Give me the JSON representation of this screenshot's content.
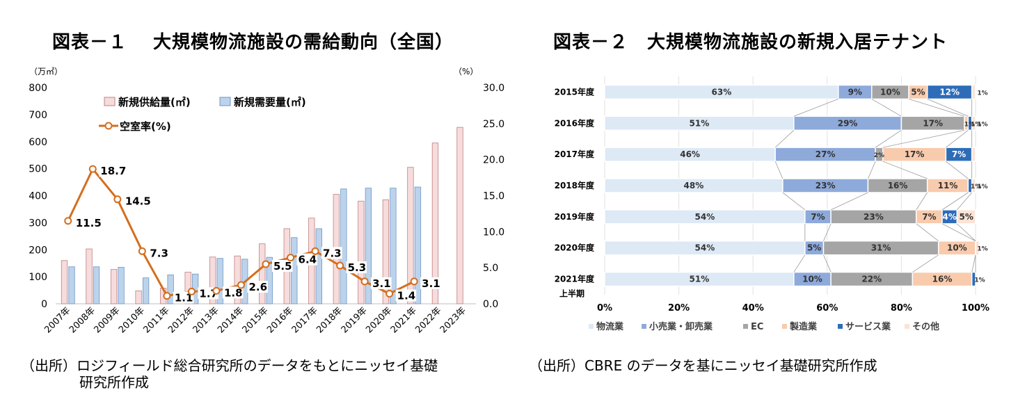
{
  "figure1": {
    "title": "図表－１　 大規模物流施設の需給動向（全国）",
    "source_line1": "（出所）ロジフィールド総合研究所のデータをもとにニッセイ基礎",
    "source_line2": "研究所作成"
  },
  "figure2": {
    "title": "図表－２　大規模物流施設の新規入居テナント",
    "source": "（出所）CBRE のデータを基にニッセイ基礎研究所作成"
  },
  "colors": {
    "supply_fill": "#f6dcdc",
    "supply_stroke": "#c08080",
    "demand_fill": "#bcd3ec",
    "demand_stroke": "#6f95c2",
    "vacancy_line": "#d46e1e",
    "logistics": "#dde9f5",
    "retail": "#8eaadb",
    "ec": "#a5a5a5",
    "manufacturing": "#f8cbad",
    "service": "#2e6cb8",
    "other": "#fbe3d6"
  },
  "chart_data": [
    {
      "type": "bar",
      "left_unit": "（万㎡）",
      "right_unit": "（%）",
      "ylim_left": [
        0,
        800
      ],
      "ylim_right": [
        0,
        30
      ],
      "left_ticks": [
        "0",
        "100",
        "200",
        "300",
        "400",
        "500",
        "600",
        "700",
        "800"
      ],
      "right_ticks": [
        "0.0",
        "5.0",
        "10.0",
        "15.0",
        "20.0",
        "25.0",
        "30.0"
      ],
      "grid": false,
      "legend_position": "top-left",
      "categories": [
        "2007年",
        "2008年",
        "2009年",
        "2010年",
        "2011年",
        "2012年",
        "2013年",
        "2014年",
        "2015年",
        "2016年",
        "2017年",
        "2018年",
        "2019年",
        "2020年",
        "2021年",
        "2022年",
        "2023年"
      ],
      "series": [
        {
          "name": "新規供給量(㎡)",
          "kind": "bar",
          "axis": "left",
          "values": [
            160,
            203,
            127,
            48,
            58,
            117,
            173,
            177,
            222,
            278,
            317,
            405,
            380,
            385,
            505,
            595,
            653
          ]
        },
        {
          "name": "新規需要量(㎡)",
          "kind": "bar",
          "axis": "left",
          "values": [
            137,
            137,
            135,
            96,
            107,
            110,
            168,
            165,
            172,
            245,
            278,
            425,
            428,
            428,
            432,
            null,
            null
          ]
        },
        {
          "name": "空室率(%)",
          "kind": "line",
          "axis": "right",
          "values": [
            11.5,
            18.7,
            14.5,
            7.3,
            1.1,
            1.7,
            1.8,
            2.6,
            5.5,
            6.4,
            7.3,
            5.3,
            3.1,
            1.4,
            3.1,
            null,
            null
          ],
          "labels": [
            "11.5",
            "18.7",
            "14.5",
            "7.3",
            "1.1",
            "1.7",
            "1.8",
            "2.6",
            "5.5",
            "6.4",
            "7.3",
            "5.3",
            "3.1",
            "1.4",
            "3.1",
            "",
            ""
          ]
        }
      ]
    },
    {
      "type": "bar",
      "orientation": "horizontal",
      "stacked": "percent",
      "xlim": [
        0,
        100
      ],
      "x_ticks": [
        "0%",
        "20%",
        "40%",
        "60%",
        "80%",
        "100%"
      ],
      "legend_position": "bottom",
      "categories": [
        "2015年度",
        "2016年度",
        "2017年度",
        "2018年度",
        "2019年度",
        "2020年度",
        "2021年度"
      ],
      "category_sublabels": [
        "",
        "",
        "",
        "",
        "",
        "",
        "上半期"
      ],
      "series": [
        {
          "name": "物流業",
          "values": [
            63,
            51,
            46,
            48,
            54,
            54,
            51
          ],
          "labels": [
            "63%",
            "51%",
            "46%",
            "48%",
            "54%",
            "54%",
            "51%"
          ]
        },
        {
          "name": "小売業・卸売業",
          "values": [
            9,
            29,
            27,
            23,
            7,
            5,
            10
          ],
          "labels": [
            "9%",
            "29%",
            "27%",
            "23%",
            "7%",
            "5%",
            "10%"
          ]
        },
        {
          "name": "EC",
          "values": [
            10,
            17,
            2,
            16,
            23,
            31,
            22
          ],
          "labels": [
            "10%",
            "17%",
            "2%",
            "16%",
            "23%",
            "31%",
            "22%"
          ]
        },
        {
          "name": "製造業",
          "values": [
            5,
            1,
            17,
            11,
            7,
            10,
            16
          ],
          "labels": [
            "5%",
            "1%",
            "17%",
            "11%",
            "7%",
            "10%",
            "16%"
          ]
        },
        {
          "name": "サービス業",
          "values": [
            12,
            1,
            7,
            1,
            4,
            0,
            1
          ],
          "labels": [
            "12%",
            "1%",
            "7%",
            "1%",
            "4%",
            "",
            "1%"
          ]
        },
        {
          "name": "その他",
          "values": [
            1,
            1,
            1,
            1,
            5,
            1,
            0
          ],
          "labels": [
            "1%",
            "1%",
            "",
            "1%",
            "5%",
            "1%",
            ""
          ]
        }
      ]
    }
  ]
}
